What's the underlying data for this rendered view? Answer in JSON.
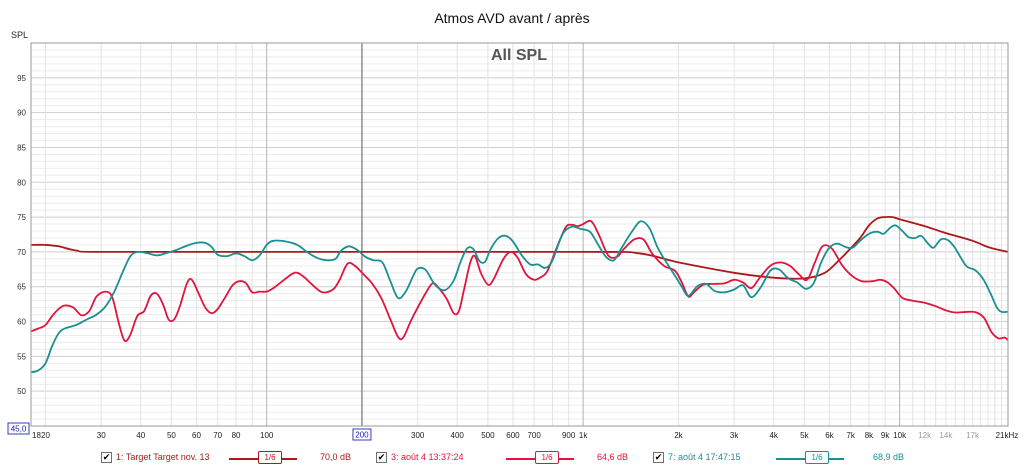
{
  "chart_data": {
    "type": "line",
    "title": "Atmos AVD avant / après",
    "subtitle": "All SPL",
    "ylabel": "SPL",
    "xlabel": "",
    "x_scale": "log",
    "xlim": [
      18,
      22000
    ],
    "ylim": [
      45,
      100
    ],
    "grid": true,
    "y_ticks": [
      50,
      55,
      60,
      65,
      70,
      75,
      80,
      85,
      90,
      95
    ],
    "y_min_label": "45,0",
    "x_ticks": [
      {
        "v": 18,
        "label": "18",
        "major": false
      },
      {
        "v": 20,
        "label": "20",
        "major": false
      },
      {
        "v": 30,
        "label": "30",
        "major": false
      },
      {
        "v": 40,
        "label": "40",
        "major": false
      },
      {
        "v": 50,
        "label": "50",
        "major": false
      },
      {
        "v": 60,
        "label": "60",
        "major": false
      },
      {
        "v": 70,
        "label": "70",
        "major": false
      },
      {
        "v": 80,
        "label": "80",
        "major": false
      },
      {
        "v": 100,
        "label": "100",
        "major": false
      },
      {
        "v": 200,
        "label": "200",
        "major": true,
        "boxed": true
      },
      {
        "v": 300,
        "label": "300",
        "major": false
      },
      {
        "v": 400,
        "label": "400",
        "major": false
      },
      {
        "v": 500,
        "label": "500",
        "major": false
      },
      {
        "v": 600,
        "label": "600",
        "major": false
      },
      {
        "v": 700,
        "label": "700",
        "major": false
      },
      {
        "v": 900,
        "label": "900",
        "major": false
      },
      {
        "v": 1000,
        "label": "1k",
        "major": false
      },
      {
        "v": 2000,
        "label": "2k",
        "major": false
      },
      {
        "v": 3000,
        "label": "3k",
        "major": false
      },
      {
        "v": 4000,
        "label": "4k",
        "major": false
      },
      {
        "v": 5000,
        "label": "5k",
        "major": false
      },
      {
        "v": 6000,
        "label": "6k",
        "major": false
      },
      {
        "v": 7000,
        "label": "7k",
        "major": false
      },
      {
        "v": 8000,
        "label": "8k",
        "major": false
      },
      {
        "v": 9000,
        "label": "9k",
        "major": false
      },
      {
        "v": 10000,
        "label": "10k",
        "major": false
      },
      {
        "v": 12000,
        "label": "12k",
        "major": false,
        "faded": true
      },
      {
        "v": 14000,
        "label": "14k",
        "major": false,
        "faded": true
      },
      {
        "v": 17000,
        "label": "17k",
        "major": false,
        "faded": true
      },
      {
        "v": 21000,
        "label": "21kHz",
        "major": false
      }
    ],
    "series": [
      {
        "name": "1: Target Target nov. 13",
        "color": "#aa1a1a",
        "smoothing": "1/6",
        "value_label": "70,0 dB",
        "points": [
          [
            18,
            71
          ],
          [
            20,
            71
          ],
          [
            22,
            70.8
          ],
          [
            25,
            70.2
          ],
          [
            30,
            70
          ],
          [
            100,
            70
          ],
          [
            1000,
            70
          ],
          [
            1500,
            69.8
          ],
          [
            2000,
            68.5
          ],
          [
            3000,
            67
          ],
          [
            4000,
            66.3
          ],
          [
            5000,
            66.2
          ],
          [
            5800,
            67
          ],
          [
            6500,
            69
          ],
          [
            7000,
            70.5
          ],
          [
            7500,
            72
          ],
          [
            8000,
            73.8
          ],
          [
            8500,
            74.8
          ],
          [
            9000,
            75
          ],
          [
            9500,
            75
          ],
          [
            10000,
            74.7
          ],
          [
            12000,
            73.7
          ],
          [
            14000,
            72.7
          ],
          [
            17000,
            71.6
          ],
          [
            19000,
            70.7
          ],
          [
            21000,
            70.2
          ],
          [
            22000,
            70
          ]
        ]
      },
      {
        "name": "3: août 4 13:37:24",
        "color": "#e0143c",
        "smoothing": "1/6",
        "value_label": "64,6 dB",
        "points": [
          [
            18,
            58.6
          ],
          [
            19,
            59
          ],
          [
            20,
            59.5
          ],
          [
            21,
            60.8
          ],
          [
            22,
            61.8
          ],
          [
            23,
            62.3
          ],
          [
            24.5,
            62
          ],
          [
            26,
            60.9
          ],
          [
            27.5,
            61.5
          ],
          [
            29,
            63.6
          ],
          [
            31,
            64.3
          ],
          [
            32.5,
            63.5
          ],
          [
            34,
            60
          ],
          [
            35.5,
            57.3
          ],
          [
            37,
            58
          ],
          [
            39,
            60.8
          ],
          [
            41,
            61.5
          ],
          [
            43,
            63.7
          ],
          [
            45,
            64
          ],
          [
            47,
            62.5
          ],
          [
            49,
            60.3
          ],
          [
            51,
            60.3
          ],
          [
            53,
            62
          ],
          [
            56,
            65.5
          ],
          [
            58,
            66
          ],
          [
            61,
            64
          ],
          [
            64,
            62
          ],
          [
            67,
            61.2
          ],
          [
            70,
            61.8
          ],
          [
            74,
            63.5
          ],
          [
            78,
            65.2
          ],
          [
            82,
            65.8
          ],
          [
            86,
            65.5
          ],
          [
            90,
            64.2
          ],
          [
            95,
            64.3
          ],
          [
            100,
            64.3
          ],
          [
            105,
            64.8
          ],
          [
            110,
            65.5
          ],
          [
            120,
            66.8
          ],
          [
            125,
            67
          ],
          [
            132,
            66.3
          ],
          [
            140,
            65.2
          ],
          [
            150,
            64.2
          ],
          [
            162,
            64.6
          ],
          [
            170,
            66
          ],
          [
            180,
            68.3
          ],
          [
            190,
            68
          ],
          [
            200,
            67
          ],
          [
            215,
            65.5
          ],
          [
            230,
            63.4
          ],
          [
            245,
            60.5
          ],
          [
            260,
            57.8
          ],
          [
            270,
            57.7
          ],
          [
            285,
            60
          ],
          [
            300,
            62
          ],
          [
            320,
            64.3
          ],
          [
            335,
            65.5
          ],
          [
            350,
            64.8
          ],
          [
            370,
            63.3
          ],
          [
            390,
            61.2
          ],
          [
            405,
            61.5
          ],
          [
            420,
            64.5
          ],
          [
            440,
            68.5
          ],
          [
            455,
            69.4
          ],
          [
            475,
            67
          ],
          [
            500,
            65.3
          ],
          [
            520,
            66
          ],
          [
            560,
            69
          ],
          [
            590,
            70
          ],
          [
            620,
            69.2
          ],
          [
            660,
            66.8
          ],
          [
            700,
            66
          ],
          [
            730,
            66.3
          ],
          [
            770,
            67.2
          ],
          [
            820,
            70.3
          ],
          [
            880,
            73.5
          ],
          [
            920,
            73.9
          ],
          [
            960,
            73.7
          ],
          [
            1000,
            74
          ],
          [
            1060,
            74.4
          ],
          [
            1120,
            72.5
          ],
          [
            1200,
            69.5
          ],
          [
            1280,
            69.3
          ],
          [
            1350,
            70.5
          ],
          [
            1450,
            71.8
          ],
          [
            1550,
            71.8
          ],
          [
            1650,
            69.8
          ],
          [
            1800,
            68
          ],
          [
            1950,
            67.3
          ],
          [
            2050,
            65.6
          ],
          [
            2150,
            63.6
          ],
          [
            2250,
            64.3
          ],
          [
            2400,
            65.3
          ],
          [
            2600,
            65.4
          ],
          [
            2800,
            65.5
          ],
          [
            3000,
            66
          ],
          [
            3200,
            65.6
          ],
          [
            3400,
            64.8
          ],
          [
            3600,
            66.2
          ],
          [
            3900,
            68
          ],
          [
            4200,
            68.5
          ],
          [
            4500,
            68
          ],
          [
            4800,
            66.8
          ],
          [
            5100,
            66
          ],
          [
            5400,
            68.5
          ],
          [
            5700,
            70.8
          ],
          [
            6100,
            70.5
          ],
          [
            6600,
            68
          ],
          [
            7100,
            66.5
          ],
          [
            7600,
            65.8
          ],
          [
            8200,
            65.8
          ],
          [
            8700,
            66
          ],
          [
            9100,
            65.7
          ],
          [
            9600,
            64.8
          ],
          [
            10200,
            63.4
          ],
          [
            11000,
            63
          ],
          [
            12000,
            62.7
          ],
          [
            13000,
            62.2
          ],
          [
            14000,
            61.6
          ],
          [
            15000,
            61.3
          ],
          [
            16500,
            61.4
          ],
          [
            17500,
            61.3
          ],
          [
            18500,
            60.5
          ],
          [
            19500,
            58.5
          ],
          [
            20500,
            57.6
          ],
          [
            21500,
            57.7
          ],
          [
            22000,
            57.3
          ]
        ]
      },
      {
        "name": "7: août 4 17:47:15",
        "color": "#1a9090",
        "smoothing": "1/6",
        "value_label": "68,9 dB",
        "points": [
          [
            18,
            52.7
          ],
          [
            19,
            53
          ],
          [
            20,
            54
          ],
          [
            21,
            56.5
          ],
          [
            22,
            58.3
          ],
          [
            23,
            59
          ],
          [
            25,
            59.5
          ],
          [
            27,
            60.3
          ],
          [
            29,
            61
          ],
          [
            31,
            62.2
          ],
          [
            33,
            64.3
          ],
          [
            35,
            67
          ],
          [
            37,
            69.3
          ],
          [
            39,
            70
          ],
          [
            42,
            69.8
          ],
          [
            45,
            69.5
          ],
          [
            48,
            69.8
          ],
          [
            52,
            70.3
          ],
          [
            56,
            70.9
          ],
          [
            60,
            71.3
          ],
          [
            64,
            71.3
          ],
          [
            67,
            70.7
          ],
          [
            70,
            69.6
          ],
          [
            75,
            69.4
          ],
          [
            80,
            69.8
          ],
          [
            85,
            69.4
          ],
          [
            90,
            68.8
          ],
          [
            95,
            69.5
          ],
          [
            100,
            71
          ],
          [
            105,
            71.6
          ],
          [
            115,
            71.5
          ],
          [
            125,
            71
          ],
          [
            135,
            69.9
          ],
          [
            145,
            69.1
          ],
          [
            155,
            68.8
          ],
          [
            165,
            69
          ],
          [
            172,
            70.2
          ],
          [
            182,
            70.8
          ],
          [
            193,
            70.3
          ],
          [
            205,
            69.3
          ],
          [
            218,
            68.8
          ],
          [
            232,
            68.5
          ],
          [
            245,
            66
          ],
          [
            260,
            63.4
          ],
          [
            275,
            64.3
          ],
          [
            290,
            66.5
          ],
          [
            300,
            67.6
          ],
          [
            318,
            67.4
          ],
          [
            340,
            65.3
          ],
          [
            365,
            64.5
          ],
          [
            390,
            65.9
          ],
          [
            410,
            68.6
          ],
          [
            430,
            70.5
          ],
          [
            450,
            70.4
          ],
          [
            470,
            68.7
          ],
          [
            490,
            68.6
          ],
          [
            510,
            70.4
          ],
          [
            540,
            72
          ],
          [
            570,
            72.3
          ],
          [
            600,
            71.5
          ],
          [
            640,
            69.5
          ],
          [
            680,
            68.2
          ],
          [
            720,
            68.2
          ],
          [
            760,
            67.7
          ],
          [
            800,
            68.8
          ],
          [
            860,
            72.5
          ],
          [
            920,
            73.6
          ],
          [
            980,
            73.3
          ],
          [
            1050,
            72.9
          ],
          [
            1110,
            71.2
          ],
          [
            1180,
            69.3
          ],
          [
            1250,
            68.8
          ],
          [
            1320,
            70.5
          ],
          [
            1420,
            72.8
          ],
          [
            1520,
            74.4
          ],
          [
            1620,
            73.4
          ],
          [
            1720,
            70.6
          ],
          [
            1850,
            68.2
          ],
          [
            1950,
            66.6
          ],
          [
            2050,
            65
          ],
          [
            2150,
            63.7
          ],
          [
            2300,
            65.1
          ],
          [
            2450,
            65.4
          ],
          [
            2600,
            64.4
          ],
          [
            2800,
            64.2
          ],
          [
            3000,
            64.6
          ],
          [
            3200,
            65.2
          ],
          [
            3400,
            63.5
          ],
          [
            3650,
            65
          ],
          [
            3900,
            67.3
          ],
          [
            4150,
            67.5
          ],
          [
            4450,
            66.2
          ],
          [
            4750,
            65.6
          ],
          [
            5050,
            64.7
          ],
          [
            5350,
            65.5
          ],
          [
            5650,
            68.5
          ],
          [
            6000,
            70.6
          ],
          [
            6350,
            71.2
          ],
          [
            6750,
            70.7
          ],
          [
            7100,
            70.6
          ],
          [
            7500,
            71.6
          ],
          [
            8000,
            72.6
          ],
          [
            8500,
            72.9
          ],
          [
            8900,
            72.6
          ],
          [
            9300,
            73.4
          ],
          [
            9700,
            73.8
          ],
          [
            10200,
            73
          ],
          [
            10700,
            72.1
          ],
          [
            11200,
            72
          ],
          [
            11700,
            72.3
          ],
          [
            12300,
            71.2
          ],
          [
            12800,
            70.6
          ],
          [
            13500,
            71.8
          ],
          [
            14200,
            71.7
          ],
          [
            14900,
            70.7
          ],
          [
            15500,
            69.4
          ],
          [
            16300,
            67.9
          ],
          [
            17300,
            67.4
          ],
          [
            18300,
            66.2
          ],
          [
            19300,
            64.2
          ],
          [
            20300,
            62
          ],
          [
            21000,
            61.4
          ],
          [
            22000,
            61.4
          ]
        ]
      }
    ]
  }
}
